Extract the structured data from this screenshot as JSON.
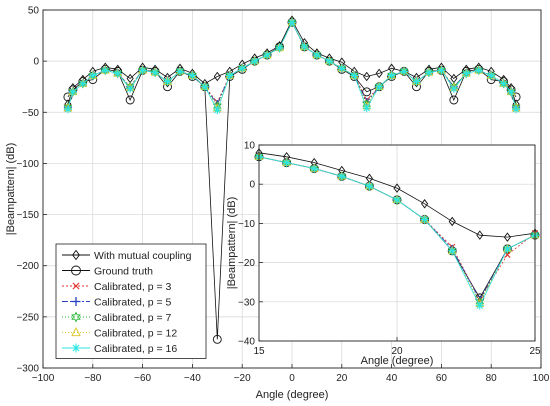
{
  "chart_data": [
    {
      "type": "line",
      "title": "",
      "xlabel": "Angle (degree)",
      "ylabel": "|Beampattern| (dB)",
      "xlim": [
        -100,
        100
      ],
      "ylim": [
        -300,
        50
      ],
      "xticks": [
        -100,
        -80,
        -60,
        -40,
        -20,
        0,
        20,
        40,
        60,
        80,
        100
      ],
      "yticks": [
        50,
        0,
        -50,
        -100,
        -150,
        -200,
        -250,
        -300
      ],
      "xtick_labels": [
        "−100",
        "−80",
        "−60",
        "−40",
        "−20",
        "0",
        "20",
        "40",
        "60",
        "80",
        "100"
      ],
      "ytick_labels": [
        "50",
        "0",
        "−50",
        "−100",
        "−150",
        "−200",
        "−250",
        "−300"
      ],
      "grid": true,
      "legend_position": "bottom-left",
      "series": [
        {
          "name": "With mutual coupling",
          "color": "#111111",
          "marker": "diamond",
          "x": [
            -90,
            -88,
            -84,
            -80,
            -75,
            -70,
            -65,
            -60,
            -55,
            -50,
            -45,
            -40,
            -35,
            -30,
            -25,
            -20,
            -15,
            -10,
            -5,
            0,
            5,
            10,
            15,
            20,
            25,
            30,
            35,
            40,
            45,
            50,
            55,
            60,
            65,
            70,
            75,
            80,
            85,
            88,
            90
          ],
          "y": [
            -42,
            -26,
            -18,
            -10,
            -6,
            -8,
            -17,
            -6,
            -8,
            -16,
            -7,
            -12,
            -22,
            -15,
            -10,
            -3,
            3,
            8,
            15,
            40,
            18,
            8,
            3,
            -1,
            -10,
            -15,
            -12,
            -7,
            -10,
            -16,
            -8,
            -6,
            -17,
            -8,
            -6,
            -10,
            -18,
            -26,
            -42
          ]
        },
        {
          "name": "Ground truth",
          "color": "#111111",
          "marker": "circle",
          "x": [
            -90,
            -88,
            -84,
            -80,
            -75,
            -70,
            -65,
            -60,
            -55,
            -50,
            -45,
            -40,
            -35,
            -30,
            -25,
            -20,
            -15,
            -10,
            -5,
            0,
            5,
            10,
            15,
            20,
            25,
            30,
            35,
            40,
            45,
            50,
            55,
            60,
            65,
            70,
            75,
            80,
            85,
            88,
            90
          ],
          "y": [
            -35,
            -28,
            -20,
            -18,
            -8,
            -10,
            -38,
            -9,
            -10,
            -25,
            -10,
            -15,
            -25,
            -272,
            -15,
            -8,
            0,
            6,
            14,
            38,
            14,
            6,
            0,
            -8,
            -15,
            -30,
            -25,
            -15,
            -10,
            -25,
            -10,
            -9,
            -38,
            -10,
            -8,
            -18,
            -20,
            -28,
            -35
          ]
        },
        {
          "name": "Calibrated, p = 3",
          "color": "#e0302a",
          "marker": "x",
          "x": [
            -90,
            -88,
            -84,
            -80,
            -75,
            -70,
            -65,
            -60,
            -55,
            -50,
            -45,
            -40,
            -35,
            -30,
            -25,
            -20,
            -15,
            -10,
            -5,
            0,
            5,
            10,
            15,
            20,
            25,
            30,
            35,
            40,
            45,
            50,
            55,
            60,
            65,
            70,
            75,
            80,
            85,
            88,
            90
          ],
          "y": [
            -45,
            -30,
            -22,
            -14,
            -9,
            -12,
            -25,
            -9,
            -11,
            -20,
            -10,
            -14,
            -25,
            -40,
            -14,
            -7,
            0,
            6,
            13,
            38,
            14,
            6,
            0,
            -7,
            -14,
            -38,
            -25,
            -14,
            -10,
            -20,
            -11,
            -9,
            -25,
            -12,
            -9,
            -14,
            -22,
            -30,
            -45
          ]
        },
        {
          "name": "Calibrated, p = 5",
          "color": "#2a3fbf",
          "marker": "plus",
          "x": [
            -90,
            -88,
            -84,
            -80,
            -75,
            -70,
            -65,
            -60,
            -55,
            -50,
            -45,
            -40,
            -35,
            -30,
            -25,
            -20,
            -15,
            -10,
            -5,
            0,
            5,
            10,
            15,
            20,
            25,
            30,
            35,
            40,
            45,
            50,
            55,
            60,
            65,
            70,
            75,
            80,
            85,
            88,
            90
          ],
          "y": [
            -45,
            -30,
            -22,
            -14,
            -9,
            -12,
            -25,
            -9,
            -11,
            -20,
            -10,
            -14,
            -25,
            -42,
            -14,
            -7,
            0,
            6,
            13,
            38,
            14,
            6,
            0,
            -7,
            -14,
            -40,
            -25,
            -14,
            -10,
            -20,
            -11,
            -9,
            -25,
            -12,
            -9,
            -14,
            -22,
            -30,
            -45
          ]
        },
        {
          "name": "Calibrated, p = 7",
          "color": "#22b531",
          "marker": "hexagram",
          "x": [
            -90,
            -88,
            -84,
            -80,
            -75,
            -70,
            -65,
            -60,
            -55,
            -50,
            -45,
            -40,
            -35,
            -30,
            -25,
            -20,
            -15,
            -10,
            -5,
            0,
            5,
            10,
            15,
            20,
            25,
            30,
            35,
            40,
            45,
            50,
            55,
            60,
            65,
            70,
            75,
            80,
            85,
            88,
            90
          ],
          "y": [
            -45,
            -30,
            -22,
            -14,
            -9,
            -12,
            -25,
            -9,
            -11,
            -20,
            -10,
            -14,
            -25,
            -44,
            -14,
            -7,
            0,
            6,
            13,
            38,
            14,
            6,
            0,
            -7,
            -14,
            -42,
            -25,
            -14,
            -10,
            -20,
            -11,
            -9,
            -25,
            -12,
            -9,
            -14,
            -22,
            -30,
            -45
          ]
        },
        {
          "name": "Calibrated, p = 12",
          "color": "#d9c41f",
          "marker": "triangle",
          "x": [
            -90,
            -88,
            -84,
            -80,
            -75,
            -70,
            -65,
            -60,
            -55,
            -50,
            -45,
            -40,
            -35,
            -30,
            -25,
            -20,
            -15,
            -10,
            -5,
            0,
            5,
            10,
            15,
            20,
            25,
            30,
            35,
            40,
            45,
            50,
            55,
            60,
            65,
            70,
            75,
            80,
            85,
            88,
            90
          ],
          "y": [
            -46,
            -30,
            -22,
            -14,
            -9,
            -12,
            -26,
            -9,
            -11,
            -20,
            -10,
            -14,
            -25,
            -46,
            -14,
            -7,
            0,
            6,
            13,
            38,
            14,
            6,
            0,
            -7,
            -14,
            -44,
            -25,
            -14,
            -10,
            -20,
            -11,
            -9,
            -26,
            -12,
            -9,
            -14,
            -22,
            -30,
            -46
          ]
        },
        {
          "name": "Calibrated, p = 16",
          "color": "#2ee6e0",
          "marker": "asterisk",
          "x": [
            -90,
            -88,
            -84,
            -80,
            -75,
            -70,
            -65,
            -60,
            -55,
            -50,
            -45,
            -40,
            -35,
            -30,
            -25,
            -20,
            -15,
            -10,
            -5,
            0,
            5,
            10,
            15,
            20,
            25,
            30,
            35,
            40,
            45,
            50,
            55,
            60,
            65,
            70,
            75,
            80,
            85,
            88,
            90
          ],
          "y": [
            -47,
            -30,
            -22,
            -14,
            -9,
            -12,
            -27,
            -9,
            -11,
            -20,
            -10,
            -14,
            -25,
            -48,
            -14,
            -7,
            0,
            6,
            13,
            38,
            14,
            6,
            0,
            -7,
            -14,
            -46,
            -25,
            -14,
            -10,
            -20,
            -11,
            -9,
            -27,
            -12,
            -9,
            -14,
            -22,
            -30,
            -47
          ]
        }
      ]
    },
    {
      "type": "line",
      "title": "",
      "xlabel": "Angle (degree)",
      "ylabel": "|Beampattern| (dB)",
      "xlim": [
        15,
        25
      ],
      "ylim": [
        -40,
        10
      ],
      "xticks": [
        15,
        20,
        25
      ],
      "yticks": [
        10,
        0,
        -10,
        -20,
        -30,
        -40
      ],
      "xtick_labels": [
        "15",
        "20",
        "25"
      ],
      "ytick_labels": [
        "10",
        "0",
        "−10",
        "−20",
        "−30",
        "−40"
      ],
      "grid": true,
      "series": [
        {
          "name": "With mutual coupling",
          "color": "#111111",
          "marker": "diamond",
          "x": [
            15,
            16,
            17,
            18,
            19,
            20,
            21,
            22,
            23,
            24,
            25
          ],
          "y": [
            8,
            7,
            5.5,
            3.5,
            1.5,
            -1,
            -5,
            -9.5,
            -13,
            -13.5,
            -12.5
          ]
        },
        {
          "name": "Ground truth",
          "color": "#111111",
          "marker": "circle",
          "x": [
            15,
            16,
            17,
            18,
            19,
            20,
            21,
            22,
            23,
            24,
            25
          ],
          "y": [
            7,
            5.5,
            4,
            2,
            -0.5,
            -4,
            -9,
            -17,
            -29,
            -16.5,
            -13
          ]
        },
        {
          "name": "Calibrated, p = 3",
          "color": "#e0302a",
          "marker": "x",
          "x": [
            15,
            16,
            17,
            18,
            19,
            20,
            21,
            22,
            23,
            24,
            25
          ],
          "y": [
            7,
            5.5,
            4,
            2,
            -0.5,
            -4,
            -9,
            -16,
            -29.5,
            -18,
            -12.5
          ]
        },
        {
          "name": "Calibrated, p = 5",
          "color": "#2a3fbf",
          "marker": "plus",
          "x": [
            15,
            16,
            17,
            18,
            19,
            20,
            21,
            22,
            23,
            24,
            25
          ],
          "y": [
            7,
            5.5,
            4,
            2,
            -0.5,
            -4,
            -9,
            -16.5,
            -29.5,
            -16.5,
            -13
          ]
        },
        {
          "name": "Calibrated, p = 7",
          "color": "#22b531",
          "marker": "hexagram",
          "x": [
            15,
            16,
            17,
            18,
            19,
            20,
            21,
            22,
            23,
            24,
            25
          ],
          "y": [
            7,
            5.5,
            4,
            2,
            -0.5,
            -4,
            -9,
            -17,
            -30,
            -16.5,
            -13
          ]
        },
        {
          "name": "Calibrated, p = 12",
          "color": "#d9c41f",
          "marker": "triangle",
          "x": [
            15,
            16,
            17,
            18,
            19,
            20,
            21,
            22,
            23,
            24,
            25
          ],
          "y": [
            7,
            5.5,
            4,
            2,
            -0.5,
            -4,
            -9,
            -17,
            -30.5,
            -16.5,
            -13
          ]
        },
        {
          "name": "Calibrated, p = 16",
          "color": "#2ee6e0",
          "marker": "asterisk",
          "x": [
            15,
            16,
            17,
            18,
            19,
            20,
            21,
            22,
            23,
            24,
            25
          ],
          "y": [
            7,
            5.5,
            4,
            2,
            -0.5,
            -4,
            -9,
            -17,
            -31,
            -16.5,
            -13
          ]
        }
      ]
    }
  ]
}
